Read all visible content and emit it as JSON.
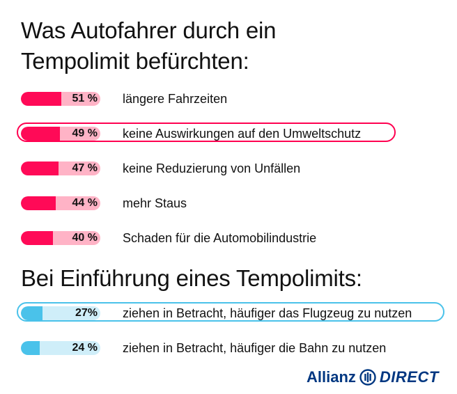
{
  "header": {
    "title": "Was Autofahrer durch ein Tempolimit befürchten:",
    "title_line1": "Was Autofahrer durch ein",
    "title_line2": "Tempolimit befürchten:"
  },
  "section2": {
    "title": "Bei Einführung eines Tempolimits:"
  },
  "logo": {
    "brand": "Allianz",
    "product": "DIRECT",
    "icon": "allianz-eagle-icon"
  },
  "colors": {
    "red_fill": "#ff0a57",
    "red_track": "#ffb3c6",
    "blue_fill": "#4ac2ea",
    "blue_track": "#cfeef9",
    "brand_blue": "#003781"
  },
  "chart_data": [
    {
      "type": "bar",
      "title": "Was Autofahrer durch ein Tempolimit befürchten:",
      "categories": [
        "längere Fahrzeiten",
        "keine Auswirkungen auf den Umweltschutz",
        "keine Reduzierung von Unfällen",
        "mehr Staus",
        "Schaden für die Automobilindustrie"
      ],
      "values": [
        51,
        49,
        47,
        44,
        40
      ],
      "value_labels": [
        "51 %",
        "49 %",
        "47 %",
        "44 %",
        "40 %"
      ],
      "highlighted": [
        false,
        true,
        false,
        false,
        false
      ],
      "color": "#ff0a57"
    },
    {
      "type": "bar",
      "title": "Bei Einführung eines Tempolimits:",
      "categories": [
        "ziehen in Betracht, häufiger das Flugzeug zu nutzen",
        "ziehen in Betracht, häufiger die Bahn zu nutzen"
      ],
      "values": [
        27,
        24
      ],
      "value_labels": [
        "27%",
        "24 %"
      ],
      "highlighted": [
        true,
        false
      ],
      "color": "#4ac2ea"
    }
  ]
}
